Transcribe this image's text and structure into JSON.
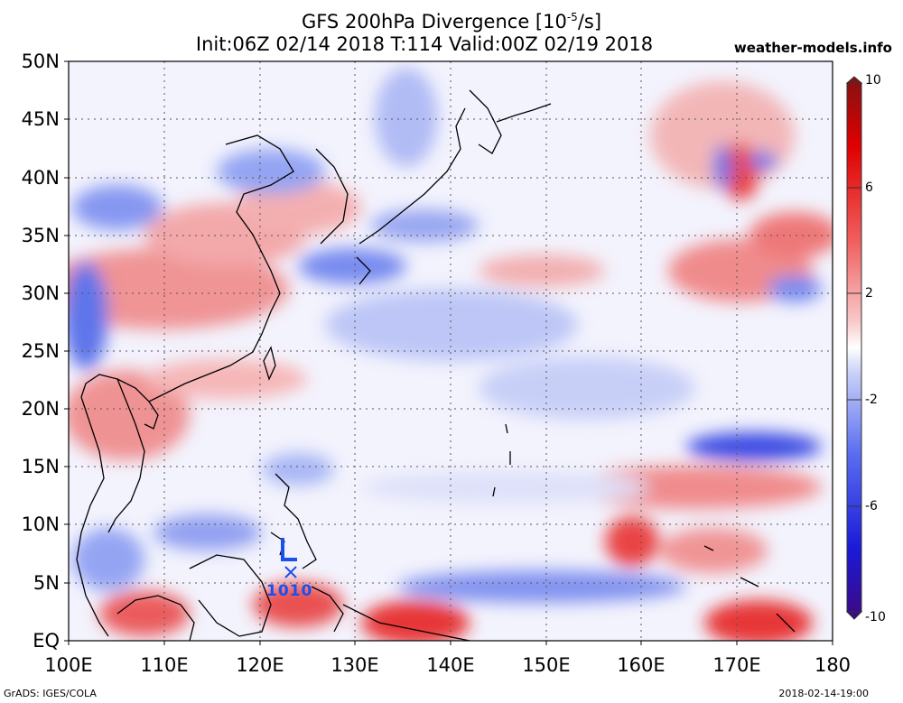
{
  "title": "GFS 200hPa Divergence [10",
  "title_exp": "-5",
  "title_unit": "/s]",
  "subtitle": "Init:06Z 02/14 2018 T:114 Valid:00Z 02/19 2018",
  "site": "weather-models.info",
  "footer_left": "GrADS: IGES/COLA",
  "footer_right": "2018-02-14-19:00",
  "lat_labels": [
    "50N",
    "45N",
    "40N",
    "35N",
    "30N",
    "25N",
    "20N",
    "15N",
    "10N",
    "5N",
    "EQ"
  ],
  "lon_labels": [
    "100E",
    "110E",
    "120E",
    "130E",
    "140E",
    "150E",
    "160E",
    "170E",
    "180"
  ],
  "colorbar_labels": [
    "10",
    "6",
    "2",
    "-2",
    "-6",
    "-10"
  ],
  "low_marker": {
    "letter": "L",
    "pressure": "1010",
    "lon": 123.5,
    "lat": 5.9
  },
  "colors": {
    "positive": "#e61e1e",
    "negative": "#1e3cdc",
    "deep_negative": "#3a0a8a",
    "deep_positive": "#8b1010",
    "marker": "#1a4ff0"
  }
}
